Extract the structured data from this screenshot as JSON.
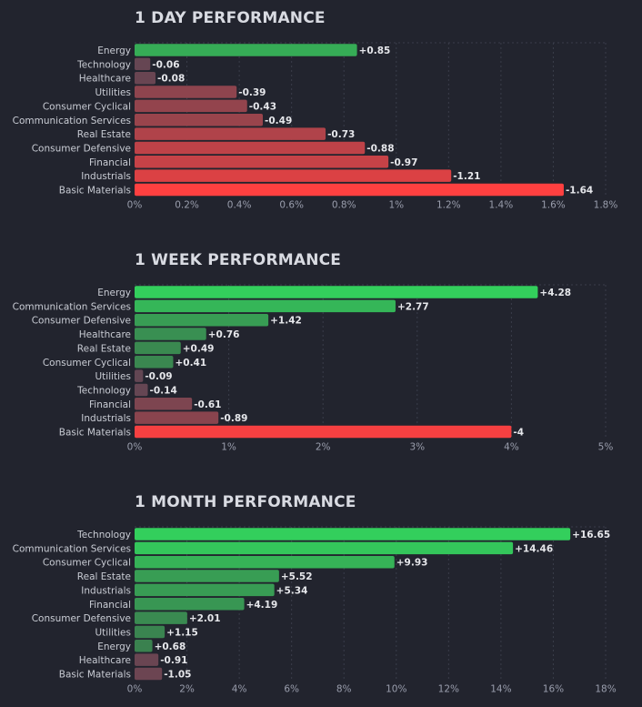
{
  "colors": {
    "pos_strong": "#33cf5c",
    "pos_weak": "#3b7a4e",
    "neg_strong": "#ff4040",
    "neg_weak": "#5a4654",
    "grid": "#3a3d4a"
  },
  "chart_data": [
    {
      "type": "bar",
      "orientation": "horizontal",
      "title": "1 DAY PERFORMANCE",
      "categories": [
        "Energy",
        "Technology",
        "Healthcare",
        "Utilities",
        "Consumer Cyclical",
        "Communication Services",
        "Real Estate",
        "Consumer Defensive",
        "Financial",
        "Industrials",
        "Basic Materials"
      ],
      "values": [
        0.85,
        -0.06,
        -0.08,
        -0.39,
        -0.43,
        -0.49,
        -0.73,
        -0.88,
        -0.97,
        -1.21,
        -1.64
      ],
      "value_labels": [
        "+0.85",
        "-0.06",
        "-0.08",
        "-0.39",
        "-0.43",
        "-0.49",
        "-0.73",
        "-0.88",
        "-0.97",
        "-1.21",
        "-1.64"
      ],
      "xlim": [
        0,
        1.8
      ],
      "xticks": [
        0,
        0.2,
        0.4,
        0.6,
        0.8,
        1,
        1.2,
        1.4,
        1.6,
        1.8
      ],
      "xtick_labels": [
        "0%",
        "0.2%",
        "0.4%",
        "0.6%",
        "0.8%",
        "1%",
        "1.2%",
        "1.4%",
        "1.6%",
        "1.8%"
      ],
      "grid": true
    },
    {
      "type": "bar",
      "orientation": "horizontal",
      "title": "1 WEEK PERFORMANCE",
      "categories": [
        "Energy",
        "Communication Services",
        "Consumer Defensive",
        "Healthcare",
        "Real Estate",
        "Consumer Cyclical",
        "Utilities",
        "Technology",
        "Financial",
        "Industrials",
        "Basic Materials"
      ],
      "values": [
        4.28,
        2.77,
        1.42,
        0.76,
        0.49,
        0.41,
        -0.09,
        -0.14,
        -0.61,
        -0.89,
        -4
      ],
      "value_labels": [
        "+4.28",
        "+2.77",
        "+1.42",
        "+0.76",
        "+0.49",
        "+0.41",
        "-0.09",
        "-0.14",
        "-0.61",
        "-0.89",
        "-4"
      ],
      "xlim": [
        0,
        5
      ],
      "xticks": [
        0,
        1,
        2,
        3,
        4,
        5
      ],
      "xtick_labels": [
        "0%",
        "1%",
        "2%",
        "3%",
        "4%",
        "5%"
      ],
      "grid": true
    },
    {
      "type": "bar",
      "orientation": "horizontal",
      "title": "1 MONTH PERFORMANCE",
      "categories": [
        "Technology",
        "Communication Services",
        "Consumer Cyclical",
        "Real Estate",
        "Industrials",
        "Financial",
        "Consumer Defensive",
        "Utilities",
        "Energy",
        "Healthcare",
        "Basic Materials"
      ],
      "values": [
        16.65,
        14.46,
        9.93,
        5.52,
        5.34,
        4.19,
        2.01,
        1.15,
        0.68,
        -0.91,
        -1.05
      ],
      "value_labels": [
        "+16.65",
        "+14.46",
        "+9.93",
        "+5.52",
        "+5.34",
        "+4.19",
        "+2.01",
        "+1.15",
        "+0.68",
        "-0.91",
        "-1.05"
      ],
      "xlim": [
        0,
        18
      ],
      "xticks": [
        0,
        2,
        4,
        6,
        8,
        10,
        12,
        14,
        16,
        18
      ],
      "xtick_labels": [
        "0%",
        "2%",
        "4%",
        "6%",
        "8%",
        "10%",
        "12%",
        "14%",
        "16%",
        "18%"
      ],
      "grid": true
    }
  ]
}
